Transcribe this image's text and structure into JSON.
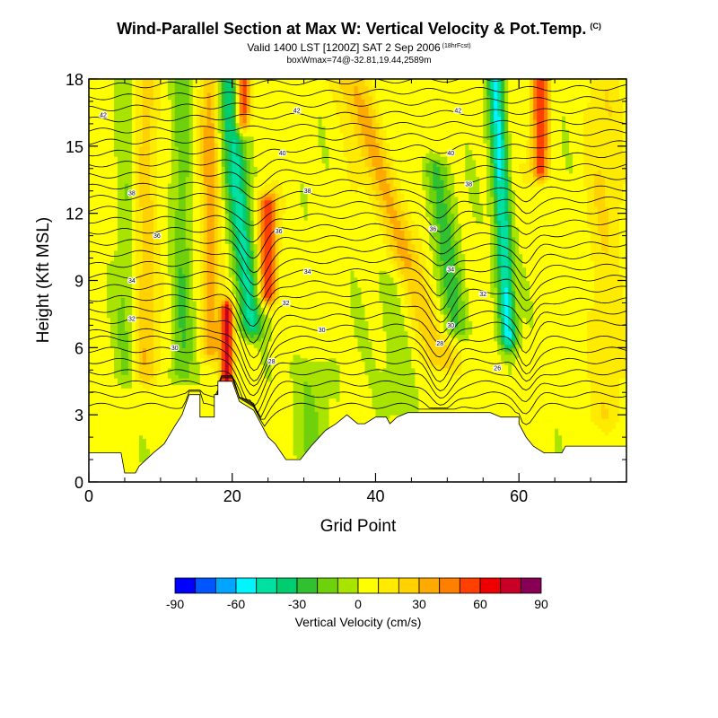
{
  "header": {
    "title": "Wind-Parallel Section at Max W: Vertical Velocity & Pot.Temp.",
    "title_mark": "(C)",
    "subtitle": "Valid 1400 LST [1200Z] SAT 2 Sep 2006",
    "subtitle_mark": "(18hrFcst)",
    "info": "boxWmax=74@-32.81,19.44,2589m"
  },
  "chart_data": {
    "type": "heatmap",
    "title": "Wind-Parallel Section at Max W: Vertical Velocity & Pot.Temp.",
    "xlabel": "Grid Point",
    "ylabel": "Height (Kft MSL)",
    "xlim": [
      0,
      75
    ],
    "ylim": [
      0,
      18
    ],
    "x_ticks": [
      0,
      20,
      40,
      60
    ],
    "y_ticks": [
      0,
      3,
      6,
      9,
      12,
      15,
      18
    ],
    "colorbar": {
      "title": "Vertical Velocity (cm/s)",
      "ticks": [
        -90,
        -60,
        -30,
        0,
        30,
        60,
        90
      ],
      "bins": [
        {
          "lo": -90,
          "hi": -80,
          "color": "#0000ff"
        },
        {
          "lo": -80,
          "hi": -70,
          "color": "#0055ff"
        },
        {
          "lo": -70,
          "hi": -60,
          "color": "#00a5ff"
        },
        {
          "lo": -60,
          "hi": -50,
          "color": "#00f5ff"
        },
        {
          "lo": -50,
          "hi": -40,
          "color": "#00e0a0"
        },
        {
          "lo": -40,
          "hi": -30,
          "color": "#00cc70"
        },
        {
          "lo": -30,
          "hi": -20,
          "color": "#30c030"
        },
        {
          "lo": -20,
          "hi": -10,
          "color": "#6ed10c"
        },
        {
          "lo": -10,
          "hi": 0,
          "color": "#a8e400"
        },
        {
          "lo": 0,
          "hi": 10,
          "color": "#ffff00"
        },
        {
          "lo": 10,
          "hi": 20,
          "color": "#ffeb00"
        },
        {
          "lo": 20,
          "hi": 30,
          "color": "#ffd200"
        },
        {
          "lo": 30,
          "hi": 40,
          "color": "#ffaa00"
        },
        {
          "lo": 40,
          "hi": 50,
          "color": "#ff8000"
        },
        {
          "lo": 50,
          "hi": 60,
          "color": "#ff4000"
        },
        {
          "lo": 60,
          "hi": 70,
          "color": "#ee0000"
        },
        {
          "lo": 70,
          "hi": 80,
          "color": "#c80028"
        },
        {
          "lo": 80,
          "hi": 90,
          "color": "#880055"
        }
      ]
    },
    "terrain_kft": [
      [
        0,
        1.3
      ],
      [
        4.5,
        1.3
      ],
      [
        5,
        0.4
      ],
      [
        6.5,
        0.4
      ],
      [
        7,
        0.7
      ],
      [
        8,
        1.0
      ],
      [
        9,
        1.3
      ],
      [
        10.5,
        1.7
      ],
      [
        12,
        2.5
      ],
      [
        13,
        3.0
      ],
      [
        14,
        3.9
      ],
      [
        15.5,
        3.9
      ],
      [
        15.5,
        2.9
      ],
      [
        17.5,
        2.9
      ],
      [
        17.5,
        3.9
      ],
      [
        18,
        3.9
      ],
      [
        18,
        4.5
      ],
      [
        20,
        4.5
      ],
      [
        21,
        3.6
      ],
      [
        23,
        3.2
      ],
      [
        24,
        2.6
      ],
      [
        25,
        2.0
      ],
      [
        26,
        1.7
      ],
      [
        27.5,
        1.0
      ],
      [
        29.5,
        1.0
      ],
      [
        31,
        1.6
      ],
      [
        33,
        2.3
      ],
      [
        34.5,
        2.6
      ],
      [
        36,
        3.0
      ],
      [
        37.5,
        2.6
      ],
      [
        38.5,
        2.6
      ],
      [
        40,
        2.9
      ],
      [
        41.5,
        2.9
      ],
      [
        42,
        2.6
      ],
      [
        43,
        2.9
      ],
      [
        44.5,
        3.1
      ],
      [
        56,
        3.1
      ],
      [
        57.5,
        2.9
      ],
      [
        60,
        2.9
      ],
      [
        60,
        2.6
      ],
      [
        61,
        2.0
      ],
      [
        62,
        1.6
      ],
      [
        63.5,
        1.3
      ],
      [
        66,
        1.3
      ],
      [
        66.5,
        1.6
      ],
      [
        75,
        1.6
      ]
    ],
    "updrafts": [
      {
        "center_x": 19.3,
        "half_width": 0.8,
        "bottom": 4.5,
        "top": 7.6,
        "tilt": 0,
        "w": 72
      },
      {
        "center_x": 25,
        "half_width": 1.2,
        "bottom": 8.5,
        "top": 12.4,
        "tilt": 0,
        "w": 58
      },
      {
        "center_x": 21.5,
        "half_width": 0.9,
        "bottom": 16.2,
        "top": 18,
        "tilt": 0,
        "w": 65
      },
      {
        "center_x": 63,
        "half_width": 1.1,
        "bottom": 14,
        "top": 18,
        "tilt": 0,
        "w": 55
      },
      {
        "center_x": 17,
        "half_width": 1.3,
        "bottom": 6,
        "top": 18,
        "tilt": 0,
        "w": 32
      },
      {
        "center_x": 49,
        "half_width": 2.2,
        "bottom": 5.5,
        "top": 18,
        "tilt": -1.0,
        "w": 28
      },
      {
        "center_x": 8,
        "half_width": 1.5,
        "bottom": 5,
        "top": 18,
        "tilt": 0,
        "w": 22
      },
      {
        "center_x": 72,
        "half_width": 2.5,
        "bottom": 3,
        "top": 18,
        "tilt": 0,
        "w": 14
      }
    ],
    "downdrafts": [
      {
        "center_x": 22.5,
        "half_width": 1.6,
        "bottom": 7,
        "top": 18,
        "tilt": -0.28,
        "w": -45
      },
      {
        "center_x": 58.5,
        "half_width": 1.1,
        "bottom": 6.5,
        "top": 18,
        "tilt": -0.15,
        "w": -55
      },
      {
        "center_x": 51,
        "half_width": 1.8,
        "bottom": 7,
        "top": 14,
        "tilt": -0.35,
        "w": -28
      },
      {
        "center_x": 13,
        "half_width": 1.3,
        "bottom": 5,
        "top": 18,
        "tilt": 0,
        "w": -22
      },
      {
        "center_x": 5,
        "half_width": 1.2,
        "bottom": 5,
        "top": 18,
        "tilt": 0,
        "w": -14
      },
      {
        "center_x": 43,
        "half_width": 2.5,
        "bottom": 3.5,
        "top": 9,
        "tilt": 0,
        "w": -12
      },
      {
        "center_x": 31,
        "half_width": 2.5,
        "bottom": 1.5,
        "top": 5,
        "tilt": 0,
        "w": -14
      }
    ],
    "theta_contour_labels": [
      {
        "label": "42",
        "x": 2,
        "y": 16.4
      },
      {
        "label": "42",
        "x": 29,
        "y": 16.6
      },
      {
        "label": "42",
        "x": 51.5,
        "y": 16.6
      },
      {
        "label": "40",
        "x": 27,
        "y": 14.7
      },
      {
        "label": "40",
        "x": 50.5,
        "y": 14.7
      },
      {
        "label": "38",
        "x": 6,
        "y": 12.9
      },
      {
        "label": "38",
        "x": 30.5,
        "y": 13.0
      },
      {
        "label": "38",
        "x": 53,
        "y": 13.3
      },
      {
        "label": "36",
        "x": 9.5,
        "y": 11.0
      },
      {
        "label": "36",
        "x": 26.5,
        "y": 11.2
      },
      {
        "label": "36",
        "x": 48,
        "y": 11.3
      },
      {
        "label": "34",
        "x": 6,
        "y": 9.0
      },
      {
        "label": "34",
        "x": 30.5,
        "y": 9.4
      },
      {
        "label": "34",
        "x": 50.5,
        "y": 9.5
      },
      {
        "label": "32",
        "x": 6,
        "y": 7.3
      },
      {
        "label": "32",
        "x": 27.5,
        "y": 8.0
      },
      {
        "label": "32",
        "x": 55,
        "y": 8.4
      },
      {
        "label": "30",
        "x": 12,
        "y": 6.0
      },
      {
        "label": "30",
        "x": 32.5,
        "y": 6.8
      },
      {
        "label": "30",
        "x": 50.5,
        "y": 7.0
      },
      {
        "label": "28",
        "x": 25.5,
        "y": 5.4
      },
      {
        "label": "28",
        "x": 49,
        "y": 6.2
      },
      {
        "label": "26",
        "x": 57,
        "y": 5.1
      }
    ]
  }
}
